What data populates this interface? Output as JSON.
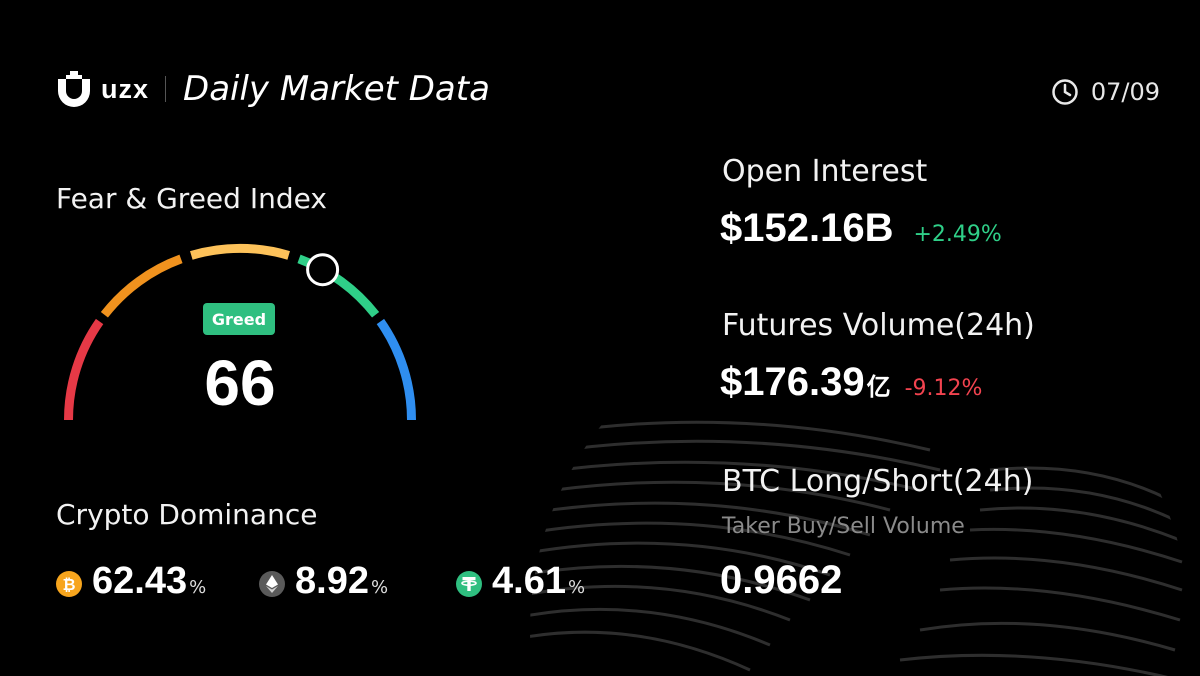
{
  "brand": {
    "name": "uzx",
    "title": "Daily Market Data"
  },
  "header": {
    "date": "07/09"
  },
  "fear_greed": {
    "title": "Fear & Greed Index",
    "label": "Greed",
    "value": "66",
    "level": 66,
    "level_max": 100
  },
  "dominance": {
    "title": "Crypto Dominance",
    "items": [
      {
        "icon": "bitcoin-icon",
        "value": "62.43",
        "unit": "%",
        "color": "#f7a51d"
      },
      {
        "icon": "ethereum-icon",
        "value": "8.92",
        "unit": "%",
        "color": "#5a5a5a"
      },
      {
        "icon": "tether-icon",
        "value": "4.61",
        "unit": "%",
        "color": "#2fbf80"
      }
    ]
  },
  "open_interest": {
    "label": "Open Interest",
    "value": "$152.16B",
    "change": "+2.49%"
  },
  "futures_volume": {
    "label": "Futures Volume(24h)",
    "value": "$176.39",
    "unit": "亿",
    "change": "-9.12%"
  },
  "btc_ratio": {
    "label": "BTC Long/Short(24h)",
    "sublabel": "Taker Buy/Sell Volume",
    "value": "0.9662"
  },
  "colors": {
    "up": "#2fcf88",
    "down": "#f2434f",
    "greed": "#2fbf80"
  }
}
